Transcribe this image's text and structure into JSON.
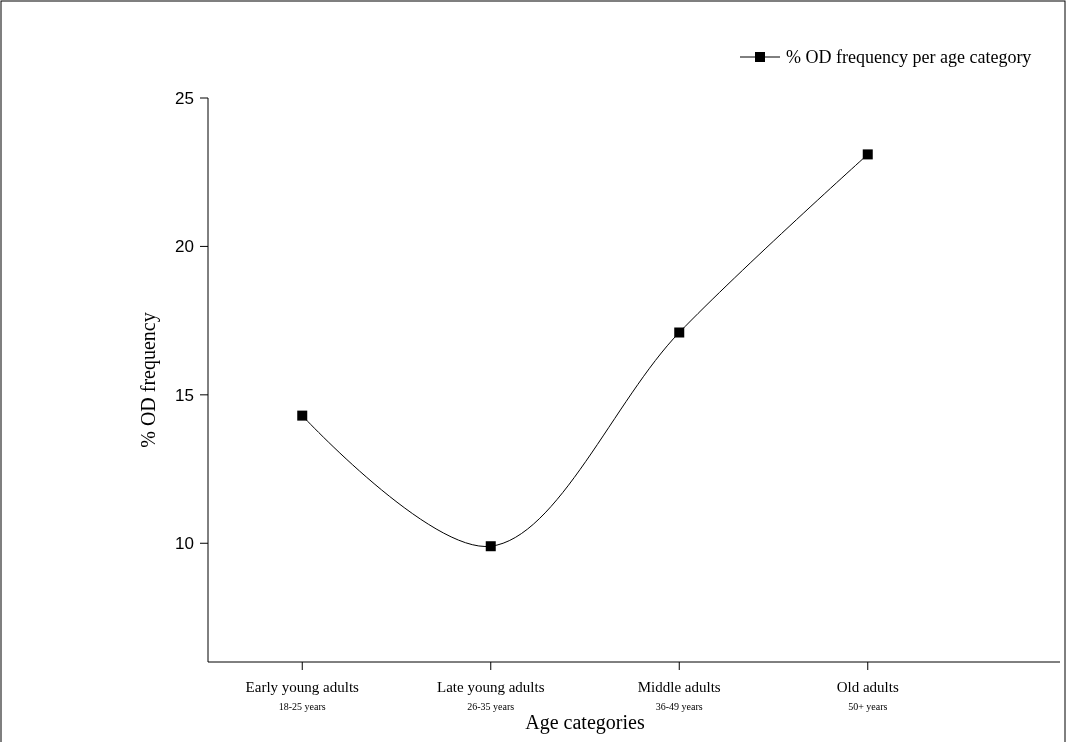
{
  "chart_data": {
    "type": "line",
    "xlabel": "Age categories",
    "ylabel": "% OD frequency",
    "categories": [
      "Early young adults\n18-25 years",
      "Late young adults\n26-35 years",
      "Middle adults\n36-49 years",
      "Old adults\n50+ years"
    ],
    "series": [
      {
        "name": "% OD frequency per age category",
        "color": "#000000",
        "values": [
          14.3,
          9.9,
          17.1,
          23.1
        ]
      }
    ],
    "ylim": [
      6,
      25
    ],
    "yticks": [
      10,
      15,
      20,
      25
    ],
    "grid": false,
    "legend": "top right",
    "marker": "square",
    "line_style": "solid"
  }
}
